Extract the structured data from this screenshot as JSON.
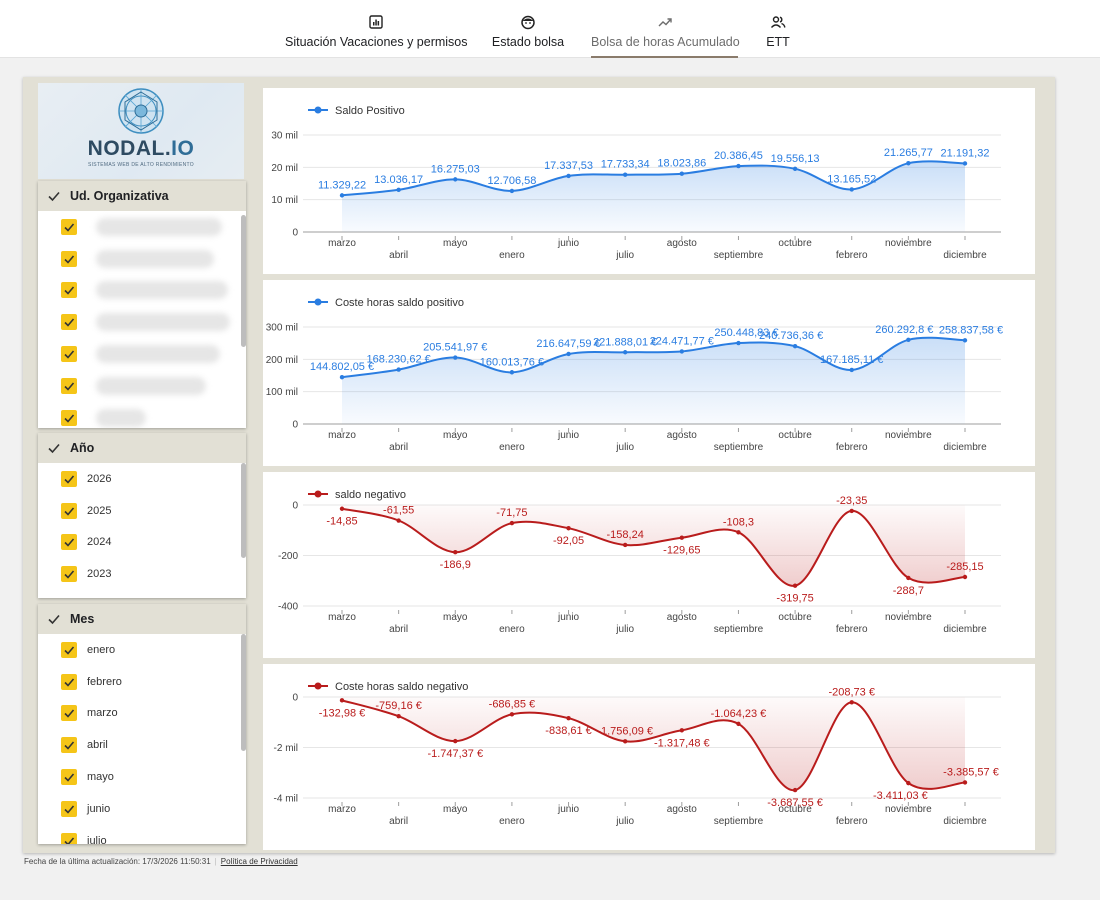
{
  "tabs": [
    {
      "label": "Situación Vacaciones y permisos",
      "icon": "bar-chart-icon",
      "active": false
    },
    {
      "label": "Estado bolsa",
      "icon": "face-icon",
      "active": false
    },
    {
      "label": "Bolsa de horas Acumulado",
      "icon": "trending-up-icon",
      "active": true
    },
    {
      "label": "ETT",
      "icon": "people-icon",
      "active": false
    }
  ],
  "logo": {
    "brand_a": "NODAL.",
    "brand_b": "IO",
    "tagline": "SISTEMAS WEB DE ALTO RENDIMIENTO"
  },
  "filters": {
    "org": {
      "title": "Ud. Organizativa",
      "items": [
        "",
        "",
        "",
        "",
        "",
        "",
        ""
      ]
    },
    "year": {
      "title": "Año",
      "items": [
        "2026",
        "2025",
        "2024",
        "2023"
      ]
    },
    "month": {
      "title": "Mes",
      "items": [
        "enero",
        "febrero",
        "marzo",
        "abril",
        "mayo",
        "junio",
        "julio"
      ]
    }
  },
  "colors": {
    "positive": "#2a7de1",
    "negative": "#b91c1c",
    "checkbox": "#f5c518"
  },
  "chart_data": [
    {
      "type": "area",
      "legend": "Saldo Positivo",
      "color": "#2a7de1",
      "categories": [
        "marzo",
        "abril",
        "mayo",
        "enero",
        "junio",
        "julio",
        "agosto",
        "septiembre",
        "octubre",
        "febrero",
        "noviembre",
        "diciembre"
      ],
      "values": [
        11329.22,
        13036.17,
        16275.03,
        12706.58,
        17337.53,
        17733.34,
        18023.86,
        20386.45,
        19556.13,
        13165.52,
        21265.77,
        21191.32
      ],
      "labels": [
        "11.329,22",
        "13.036,17",
        "16.275,03",
        "12.706,58",
        "17.337,53",
        "17.733,34",
        "18.023,86",
        "20.386,45",
        "19.556,13",
        "13.165,52",
        "21.265,77",
        "21.191,32"
      ],
      "yticks": [
        {
          "v": 30000,
          "t": "30 mil"
        },
        {
          "v": 20000,
          "t": "20 mil"
        },
        {
          "v": 10000,
          "t": "10 mil"
        },
        {
          "v": 0,
          "t": "0"
        }
      ],
      "ylim": [
        0,
        30000
      ]
    },
    {
      "type": "area",
      "legend": "Coste horas saldo positivo",
      "color": "#2a7de1",
      "categories": [
        "marzo",
        "abril",
        "mayo",
        "enero",
        "junio",
        "julio",
        "agosto",
        "septiembre",
        "octubre",
        "febrero",
        "noviembre",
        "diciembre"
      ],
      "values": [
        144802.05,
        168230.62,
        205541.97,
        160013.76,
        216647.59,
        221888.01,
        224471.77,
        250448.83,
        240736.36,
        167185.11,
        260292.8,
        258837.58
      ],
      "labels": [
        "144.802,05 €",
        "168.230,62 €",
        "205.541,97 €",
        "160.013,76 €",
        "216.647,59 €",
        "221.888,01 €",
        "224.471,77 €",
        "250.448,83 €",
        "240.736,36 €",
        "167.185,11 €",
        "260.292,8 €",
        "258.837,58 €"
      ],
      "yticks": [
        {
          "v": 300000,
          "t": "300 mil"
        },
        {
          "v": 200000,
          "t": "200 mil"
        },
        {
          "v": 100000,
          "t": "100 mil"
        },
        {
          "v": 0,
          "t": "0"
        }
      ],
      "ylim": [
        0,
        300000
      ]
    },
    {
      "type": "area",
      "legend": "saldo negativo",
      "color": "#b91c1c",
      "categories": [
        "marzo",
        "abril",
        "mayo",
        "enero",
        "junio",
        "julio",
        "agosto",
        "septiembre",
        "octubre",
        "febrero",
        "noviembre",
        "diciembre"
      ],
      "values": [
        -14.85,
        -61.55,
        -186.9,
        -71.75,
        -92.05,
        -158.24,
        -129.65,
        -108.3,
        -319.75,
        -23.35,
        -288.7,
        -285.15
      ],
      "labels": [
        "-14,85",
        "-61,55",
        "-186,9",
        "-71,75",
        "-92,05",
        "-158,24",
        "-129,65",
        "-108,3",
        "-319,75",
        "-23,35",
        "-288,7",
        "-285,15"
      ],
      "yticks": [
        {
          "v": 0,
          "t": "0"
        },
        {
          "v": -200,
          "t": "-200"
        },
        {
          "v": -400,
          "t": "-400"
        }
      ],
      "ylim": [
        -400,
        0
      ]
    },
    {
      "type": "area",
      "legend": "Coste horas saldo negativo",
      "color": "#b91c1c",
      "categories": [
        "marzo",
        "abril",
        "mayo",
        "enero",
        "junio",
        "julio",
        "agosto",
        "septiembre",
        "octubre",
        "febrero",
        "noviembre",
        "diciembre"
      ],
      "values": [
        -132.98,
        -759.16,
        -1747.37,
        -686.85,
        -838.61,
        -1756.09,
        -1317.48,
        -1064.23,
        -3687.55,
        -208.73,
        -3411.03,
        -3385.57
      ],
      "labels": [
        "-132,98 €",
        "-759,16 €",
        "-1.747,37 €",
        "-686,85 €",
        "-838,61 €",
        "-1.756,09 €",
        "-1.317,48 €",
        "-1.064,23 €",
        "-3.687,55 €",
        "-208,73 €",
        "-3.411,03 €",
        "-3.385,57 €"
      ],
      "yticks": [
        {
          "v": 0,
          "t": "0"
        },
        {
          "v": -2000,
          "t": "-2 mil"
        },
        {
          "v": -4000,
          "t": "-4 mil"
        }
      ],
      "ylim": [
        -4000,
        0
      ]
    }
  ],
  "footer": {
    "updated": "Fecha de la última actualización: 17/3/2026 11:50:31",
    "privacy": "Política de Privacidad"
  }
}
